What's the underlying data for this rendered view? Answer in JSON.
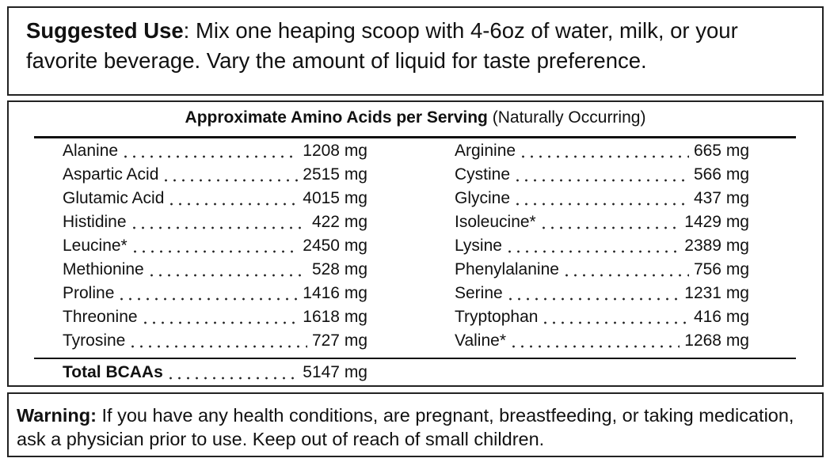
{
  "suggested_use": {
    "label": "Suggested Use",
    "text": ": Mix one heaping scoop with 4-6oz of water, milk, or your favorite beverage. Vary the amount of liquid for taste preference."
  },
  "amino_table": {
    "title": "Approximate Amino Acids per Serving",
    "note": "(Naturally Occurring)",
    "left": [
      {
        "name": "Alanine",
        "amount": "1208 mg"
      },
      {
        "name": "Aspartic Acid",
        "amount": "2515 mg"
      },
      {
        "name": "Glutamic Acid",
        "amount": "4015 mg"
      },
      {
        "name": "Histidine",
        "amount": "422 mg"
      },
      {
        "name": "Leucine*",
        "amount": "2450 mg"
      },
      {
        "name": "Methionine",
        "amount": "528 mg"
      },
      {
        "name": "Proline",
        "amount": "1416 mg"
      },
      {
        "name": "Threonine",
        "amount": "1618 mg"
      },
      {
        "name": "Tyrosine",
        "amount": "727 mg"
      }
    ],
    "right": [
      {
        "name": "Arginine",
        "amount": "665 mg"
      },
      {
        "name": "Cystine",
        "amount": "566 mg"
      },
      {
        "name": "Glycine",
        "amount": "437 mg"
      },
      {
        "name": "Isoleucine*",
        "amount": "1429 mg"
      },
      {
        "name": "Lysine",
        "amount": "2389 mg"
      },
      {
        "name": "Phenylalanine",
        "amount": "756 mg"
      },
      {
        "name": "Serine",
        "amount": "1231 mg"
      },
      {
        "name": "Tryptophan",
        "amount": "416 mg"
      },
      {
        "name": "Valine*",
        "amount": "1268 mg"
      }
    ],
    "total": {
      "name": "Total BCAAs",
      "amount": "5147 mg"
    }
  },
  "warning": {
    "label": "Warning:",
    "text": " If you have any health conditions, are pregnant, breastfeeding, or taking medication, ask a physician prior to use. Keep out of reach of small children."
  }
}
